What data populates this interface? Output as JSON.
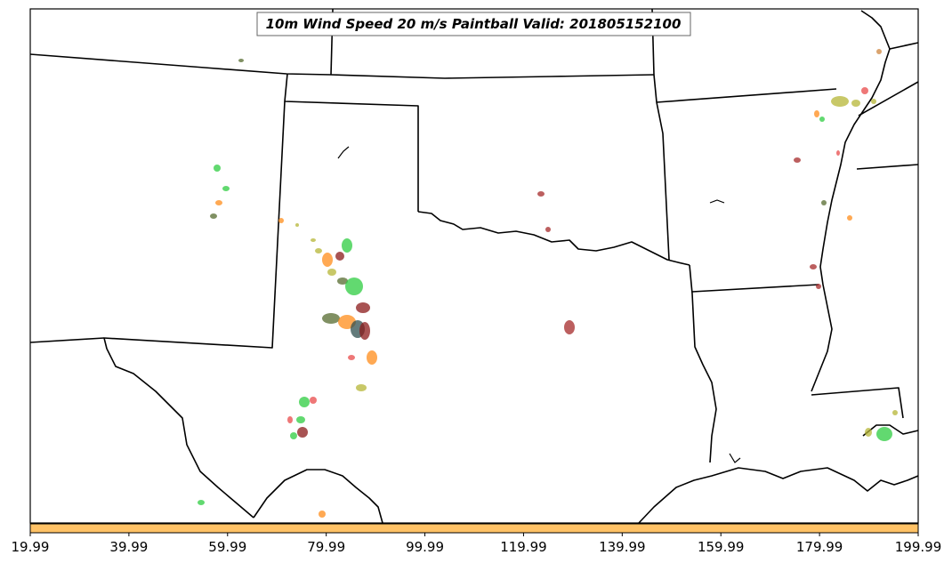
{
  "map": {
    "title": "10m Wind Speed 20 m/s Paintball Valid: 201805152100"
  },
  "colorbar": {
    "fill_color": "#ffc266",
    "ticks": [
      "19.99",
      "39.99",
      "59.99",
      "79.99",
      "99.99",
      "119.99",
      "139.99",
      "159.99",
      "179.99",
      "199.99"
    ]
  },
  "colors": {
    "boundary": "#000000",
    "paintball_palette": [
      "#2ecc40",
      "#ff8c1a",
      "#8b1a1a",
      "#556b2f",
      "#b5b536",
      "#e84a4a",
      "#2f4f4f",
      "#cd853f",
      "#a52a2a",
      "#3cb371"
    ]
  }
}
